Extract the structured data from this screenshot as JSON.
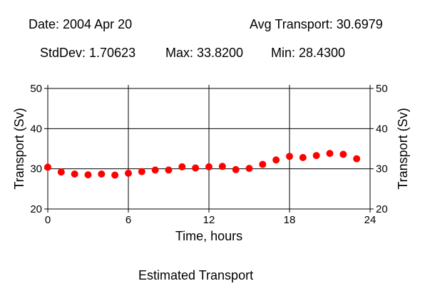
{
  "header": {
    "date": "Date: 2004 Apr 20",
    "avg": "Avg Transport: 30.6979",
    "stddev": "StdDev: 1.70623",
    "max": "Max: 33.8200",
    "min": "Min: 28.4300"
  },
  "caption": "Estimated Transport",
  "chart_data": {
    "type": "scatter",
    "xlabel": "Time, hours",
    "ylabel": "Transport (Sv)",
    "y2label": "Transport (Sv)",
    "xlim": [
      0,
      24
    ],
    "ylim": [
      20,
      50
    ],
    "xticks": [
      0,
      6,
      12,
      18,
      24
    ],
    "yticks": [
      20,
      30,
      40,
      50
    ],
    "grid": true,
    "marker_color": "#ff0000",
    "x": [
      0,
      1,
      2,
      3,
      4,
      5,
      6,
      7,
      8,
      9,
      10,
      11,
      12,
      13,
      14,
      15,
      16,
      17,
      18,
      19,
      20,
      21,
      22,
      23
    ],
    "y": [
      30.4,
      29.2,
      28.7,
      28.5,
      28.7,
      28.43,
      28.9,
      29.3,
      29.7,
      29.7,
      30.5,
      30.2,
      30.5,
      30.6,
      29.8,
      30.1,
      31.1,
      32.2,
      33.1,
      32.8,
      33.3,
      33.82,
      33.6,
      32.5
    ]
  }
}
